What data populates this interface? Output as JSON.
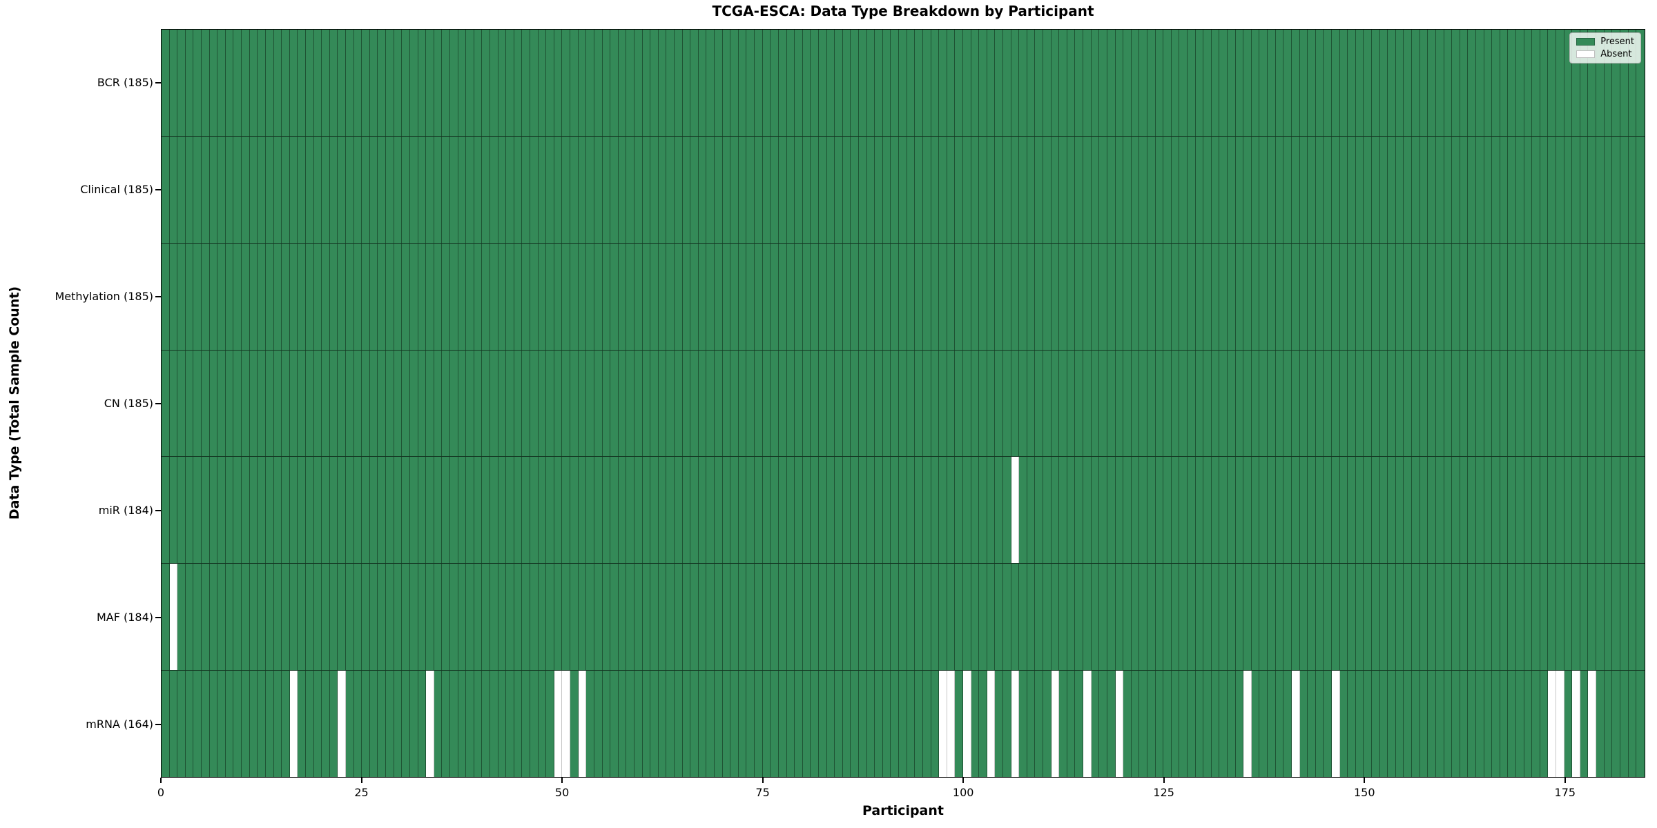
{
  "title": "TCGA-ESCA: Data Type Breakdown by Participant",
  "x_axis": {
    "label": "Participant",
    "ticks": [
      0,
      25,
      50,
      75,
      100,
      125,
      150,
      175
    ],
    "max": 185
  },
  "y_axis": {
    "label": "Data Type (Total Sample Count)"
  },
  "legend": {
    "items": [
      {
        "label": "Present",
        "color": "#348a58"
      },
      {
        "label": "Absent",
        "color": "#ffffff"
      }
    ]
  },
  "colors": {
    "present": "#348a58",
    "absent": "#ffffff",
    "grid_line": "rgba(0,0,0,0.40)"
  },
  "chart_data": {
    "type": "heatmap",
    "title": "TCGA-ESCA: Data Type Breakdown by Participant",
    "xlabel": "Participant",
    "ylabel": "Data Type (Total Sample Count)",
    "x_range": [
      0,
      185
    ],
    "x_ticks": [
      0,
      25,
      50,
      75,
      100,
      125,
      150,
      175
    ],
    "n_participants": 185,
    "grid": true,
    "legend_position": "upper right",
    "categories": [
      "BCR (185)",
      "Clinical (185)",
      "Methylation (185)",
      "CN (185)",
      "miR (184)",
      "MAF (184)",
      "mRNA (164)"
    ],
    "rows": [
      {
        "label": "BCR (185)",
        "data_type": "BCR",
        "present_count": 185,
        "absent_participants": []
      },
      {
        "label": "Clinical (185)",
        "data_type": "Clinical",
        "present_count": 185,
        "absent_participants": []
      },
      {
        "label": "Methylation (185)",
        "data_type": "Methylation",
        "present_count": 185,
        "absent_participants": []
      },
      {
        "label": "CN (185)",
        "data_type": "CN",
        "present_count": 185,
        "absent_participants": []
      },
      {
        "label": "miR (184)",
        "data_type": "miR",
        "present_count": 184,
        "absent_participants": [
          106
        ]
      },
      {
        "label": "MAF (184)",
        "data_type": "MAF",
        "present_count": 184,
        "absent_participants": [
          1
        ]
      },
      {
        "label": "mRNA (164)",
        "data_type": "mRNA",
        "present_count": 164,
        "absent_participants": [
          16,
          22,
          33,
          49,
          50,
          52,
          97,
          98,
          100,
          103,
          106,
          111,
          115,
          119,
          135,
          141,
          146,
          173,
          174,
          176,
          178
        ]
      }
    ]
  }
}
